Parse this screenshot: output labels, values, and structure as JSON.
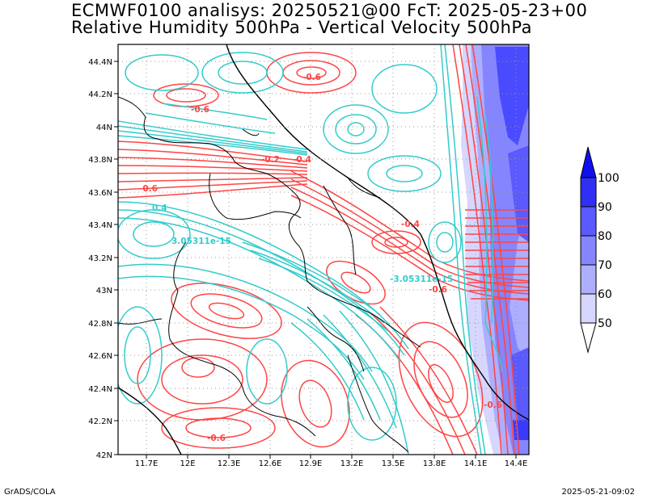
{
  "header": {
    "line1": "ECMWF0100 analisys: 20250521@00 FcT: 2025-05-23+00",
    "line2": "Relative Humidity 500hPa - Vertical Velocity 500hPa"
  },
  "map": {
    "lon_ticks": [
      "11.7E",
      "12E",
      "12.3E",
      "12.6E",
      "12.9E",
      "13.2E",
      "13.5E",
      "13.8E",
      "14.1E",
      "14.4E"
    ],
    "lat_ticks": [
      "42N",
      "42.2N",
      "42.4N",
      "42.6N",
      "42.8N",
      "43N",
      "43.2N",
      "43.4N",
      "43.6N",
      "43.8N",
      "44N",
      "44.2N",
      "44.4N"
    ],
    "contour_labels": [
      "-0.6",
      "-0.6",
      "-0.2",
      "-0.4",
      "-0.6",
      "0.4",
      "3.05311e-15",
      "-0.4",
      "-3.05311e-15",
      "-0.6",
      "-0.6",
      "-0.6"
    ],
    "colors": {
      "positive_omega": "#33cccc",
      "negative_omega": "#ff4444",
      "coast": "#000000"
    }
  },
  "colorbar": {
    "labels": [
      "50",
      "60",
      "70",
      "80",
      "90",
      "100"
    ],
    "colors": [
      "#ffffff",
      "#d6d6ff",
      "#aeaeff",
      "#8585ff",
      "#5a5aff",
      "#1010ee"
    ]
  },
  "footer": {
    "credit": "GrADS/COLA",
    "timestamp": "2025-05-21-09:02"
  }
}
